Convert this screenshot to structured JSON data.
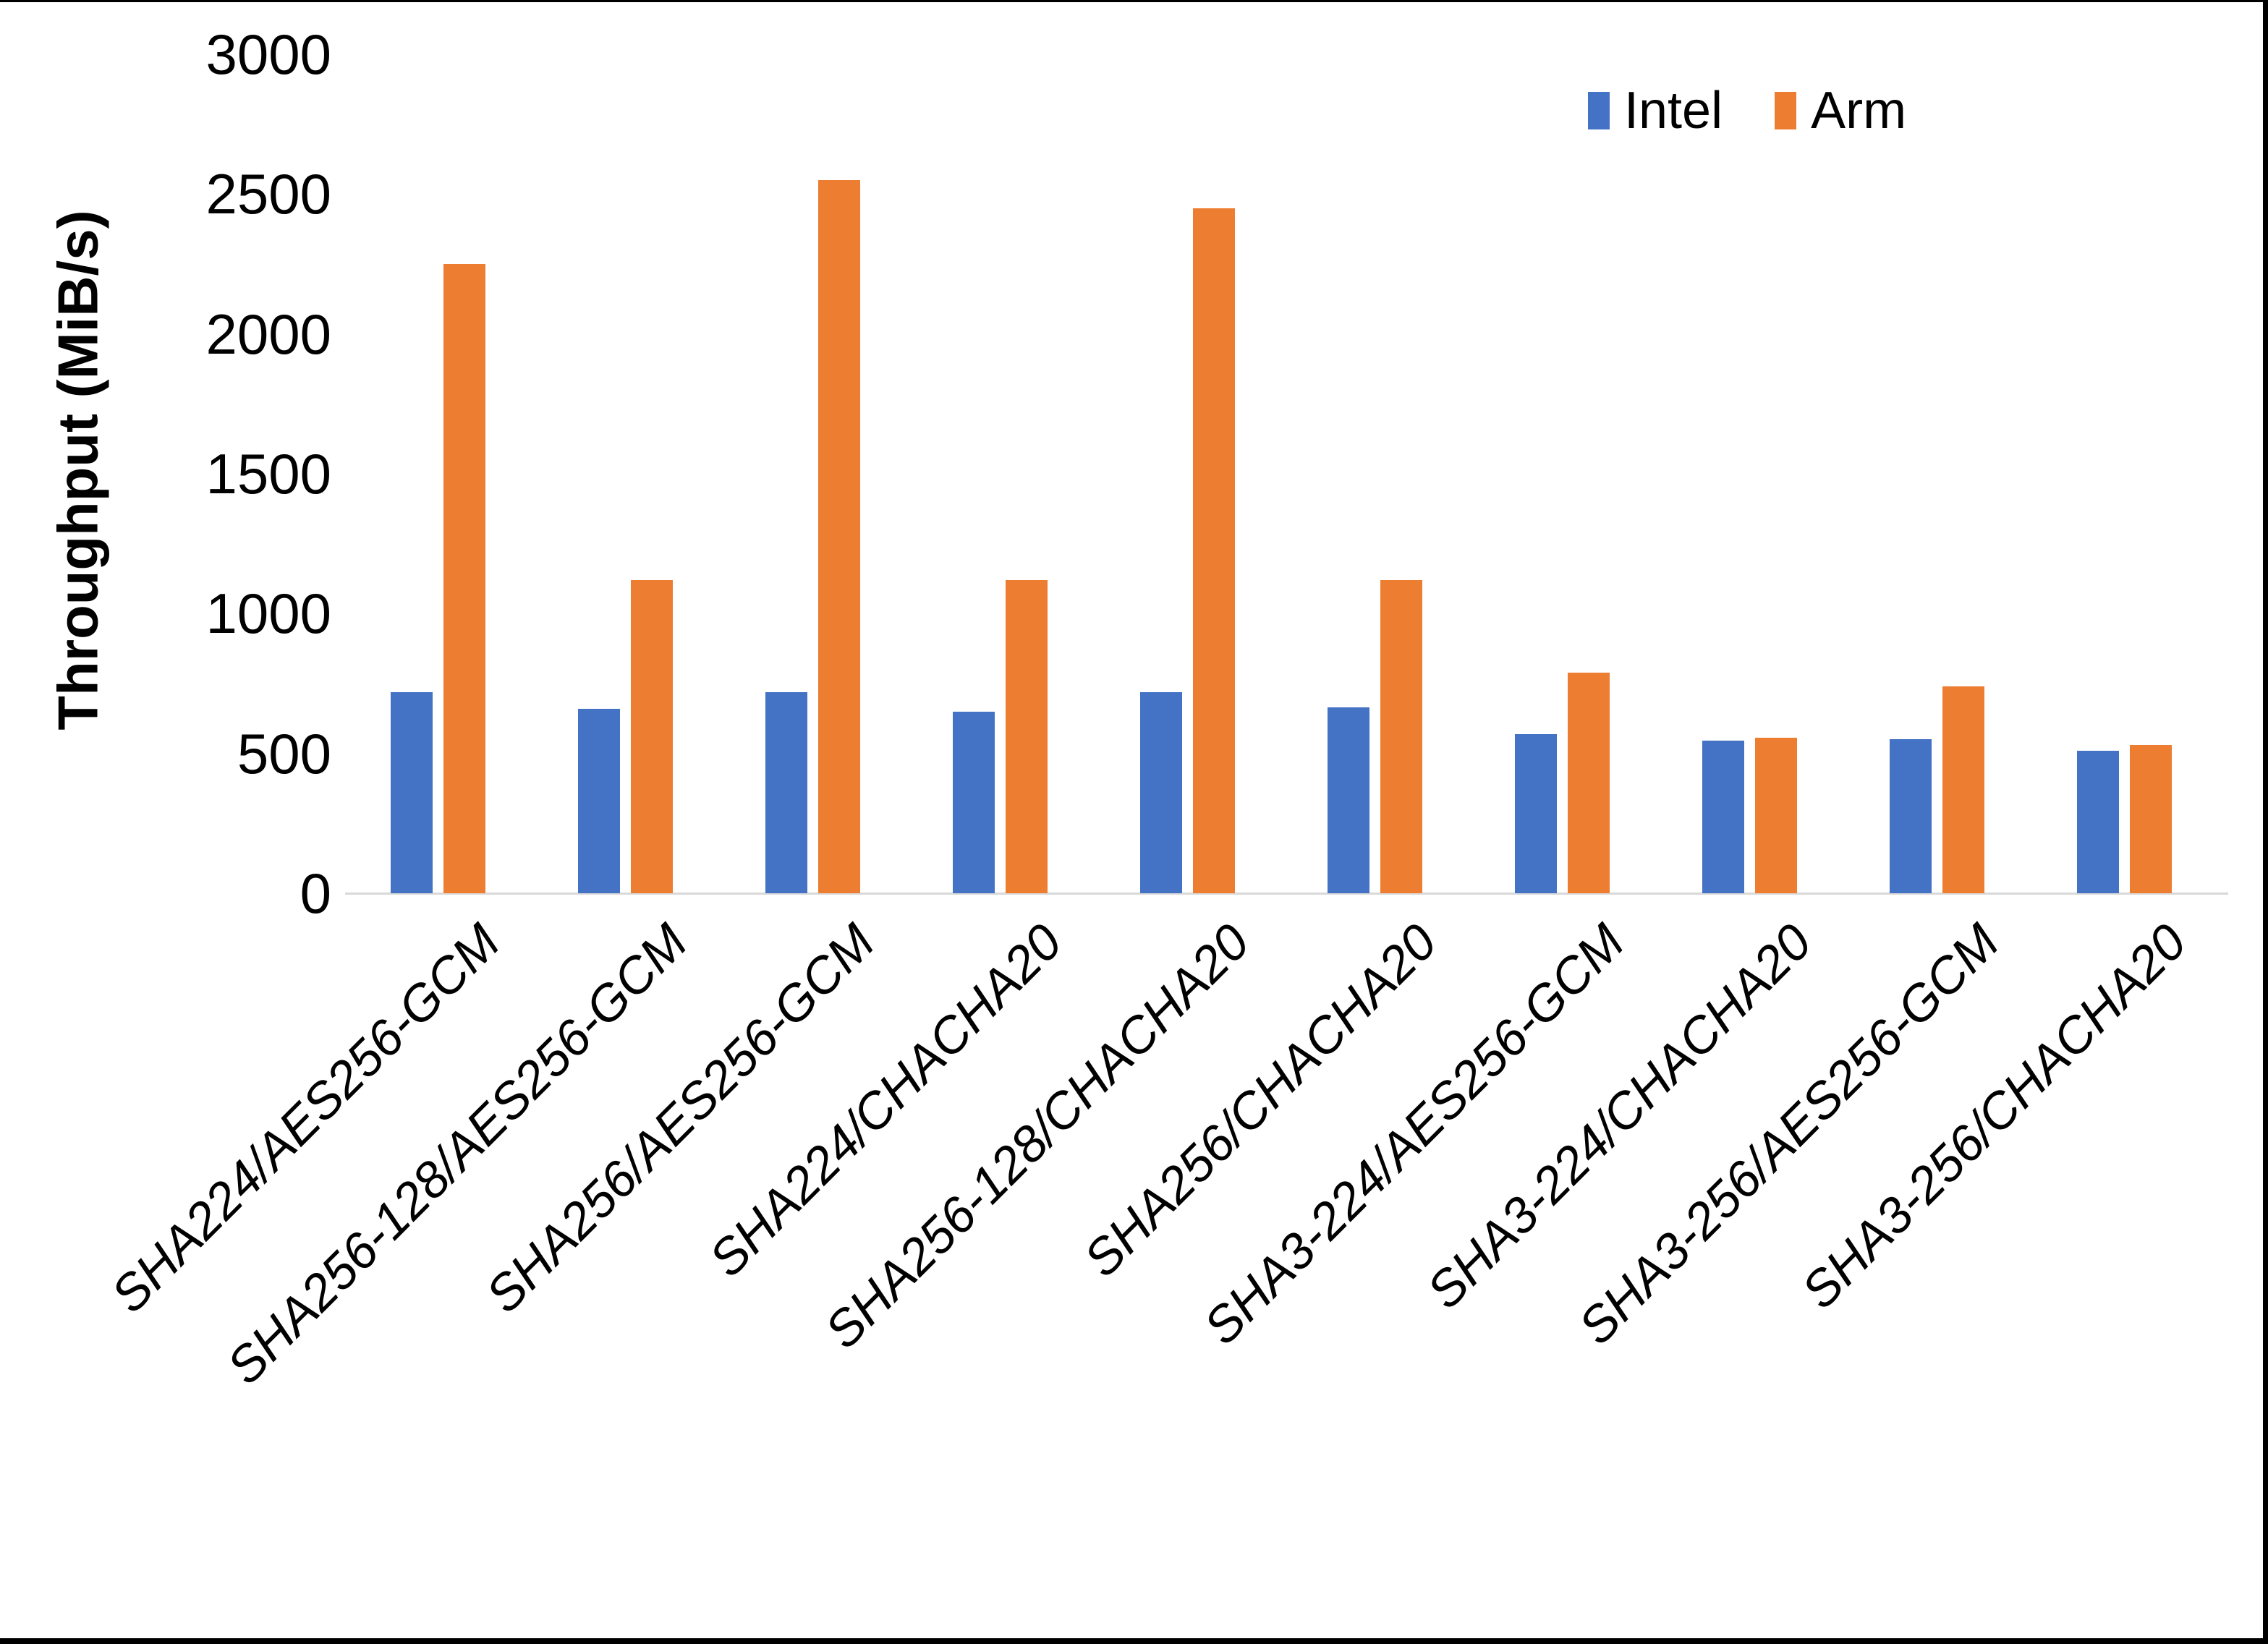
{
  "figure": {
    "background": "#FFFFFF",
    "frame_color": "#000000",
    "axis_line_color": "#D9D9D9",
    "text_color": "#000000"
  },
  "chart_data": {
    "type": "bar",
    "title": "",
    "xlabel": "",
    "ylabel": "Throughput (MiB/s)",
    "ylim": [
      0,
      3000
    ],
    "yticks": [
      0,
      500,
      1000,
      1500,
      2000,
      2500,
      3000
    ],
    "grid": false,
    "legend_position": "top-right",
    "categories": [
      "SHA224/AES256-GCM",
      "SHA256-128/AES256-GCM",
      "SHA256/AES256-GCM",
      "SHA224/CHACHA20",
      "SHA256-128/CHACHA20",
      "SHA256/CHACHA20",
      "SHA3-224/AES256-GCM",
      "SHA3-224/CHACHA20",
      "SHA3-256/AES256-GCM",
      "SHA3-256/CHACHA20"
    ],
    "series": [
      {
        "name": "Intel",
        "color": "#4472C4",
        "values": [
          720,
          660,
          720,
          650,
          720,
          665,
          570,
          545,
          550,
          510
        ]
      },
      {
        "name": "Arm",
        "color": "#ED7D31",
        "values": [
          2250,
          1120,
          2550,
          1120,
          2450,
          1120,
          790,
          555,
          740,
          530
        ]
      }
    ]
  }
}
